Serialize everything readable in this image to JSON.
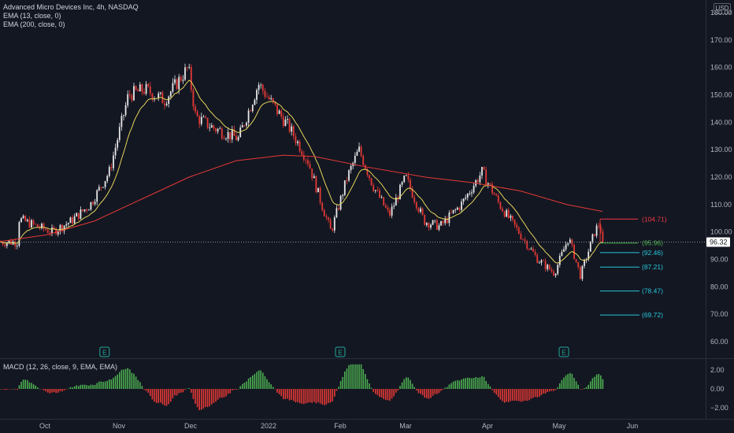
{
  "header": {
    "symbol_line": "Advanced Micro Devices Inc, 4h, NASDAQ",
    "ema13_label": "EMA (13, close, 0)",
    "ema200_label": "EMA (200, close, 0)",
    "currency": "USD"
  },
  "macd": {
    "label": "MACD (12, 26, close, 9, EMA, EMA)",
    "axis": [
      "2.00",
      "0.00",
      "−2.00"
    ]
  },
  "price_axis": [
    "180.00",
    "170.00",
    "160.00",
    "150.00",
    "140.00",
    "130.00",
    "120.00",
    "110.00",
    "100.00",
    "90.00",
    "80.00",
    "70.00",
    "60.00"
  ],
  "time_axis": [
    "Oct",
    "Nov",
    "Dec",
    "2022",
    "Feb",
    "Mar",
    "Apr",
    "May",
    "Jun"
  ],
  "current_price": {
    "label": "96.32",
    "value": 96.32
  },
  "levels": [
    {
      "label": "(104.71)",
      "value": 104.71,
      "color": "#f23645"
    },
    {
      "label": "(95.96)",
      "value": 95.96,
      "color": "#4caf50"
    },
    {
      "label": "(92.46)",
      "value": 92.46,
      "color": "#26c6da"
    },
    {
      "label": "(87.21)",
      "value": 87.21,
      "color": "#26c6da"
    },
    {
      "label": "(78.47)",
      "value": 78.47,
      "color": "#26c6da"
    },
    {
      "label": "(69.72)",
      "value": 69.72,
      "color": "#26c6da"
    }
  ],
  "earnings_marker": "E",
  "colors": {
    "up": "#e8e8e8",
    "down": "#e53935",
    "ema13": "#e6d45a",
    "ema200": "#e53935",
    "macd_up": "#4caf50",
    "macd_down": "#e53935"
  },
  "chart_data": {
    "type": "candlestick",
    "title": "Advanced Micro Devices Inc, 4h, NASDAQ",
    "ylim": [
      55,
      182
    ],
    "x_ticks": [
      "Oct",
      "Nov",
      "Dec",
      "2022",
      "Feb",
      "Mar",
      "Apr",
      "May",
      "Jun"
    ],
    "price_path_keypoints": [
      [
        "Sep 20",
        105
      ],
      [
        "Sep 28",
        102
      ],
      [
        "Oct 4",
        100
      ],
      [
        "Oct 12",
        104
      ],
      [
        "Oct 20",
        110
      ],
      [
        "Oct 28",
        122
      ],
      [
        "Nov 5",
        150
      ],
      [
        "Nov 12",
        152
      ],
      [
        "Nov 20",
        148
      ],
      [
        "Nov 30",
        160
      ],
      [
        "Dec 3",
        142
      ],
      [
        "Dec 10",
        138
      ],
      [
        "Dec 20",
        134
      ],
      [
        "Dec 28",
        154
      ],
      [
        "Jan 4",
        145
      ],
      [
        "Jan 10",
        138
      ],
      [
        "Jan 18",
        126
      ],
      [
        "Jan 24",
        110
      ],
      [
        "Jan 28",
        100
      ],
      [
        "Feb 4",
        120
      ],
      [
        "Feb 9",
        130
      ],
      [
        "Feb 15",
        117
      ],
      [
        "Feb 22",
        106
      ],
      [
        "Mar 1",
        120
      ],
      [
        "Mar 8",
        104
      ],
      [
        "Mar 14",
        102
      ],
      [
        "Mar 22",
        110
      ],
      [
        "Mar 30",
        122
      ],
      [
        "Apr 6",
        110
      ],
      [
        "Apr 14",
        100
      ],
      [
        "Apr 22",
        90
      ],
      [
        "Apr 29",
        85
      ],
      [
        "May 5",
        98
      ],
      [
        "May 10",
        84
      ],
      [
        "May 16",
        100
      ],
      [
        "May 18",
        103
      ],
      [
        "May 20",
        96.32
      ]
    ],
    "ema13_last": 95.96,
    "ema200_last": 107.5,
    "earnings_dates": [
      "Oct 26",
      "Feb 1",
      "May 3"
    ]
  }
}
